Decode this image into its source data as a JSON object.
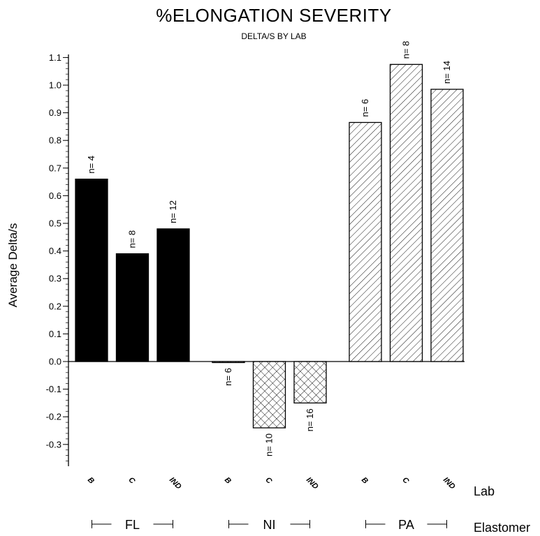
{
  "chart_data": {
    "type": "bar",
    "title": "%ELONGATION SEVERITY",
    "subtitle": "DELTA/S BY LAB",
    "ylabel": "Average Delta/s",
    "xlabel_lab": "Lab",
    "xlabel_group": "Elastomer",
    "ylim": [
      -0.42,
      1.22
    ],
    "yticks": [
      -0.3,
      -0.2,
      -0.1,
      0.0,
      0.1,
      0.2,
      0.3,
      0.4,
      0.5,
      0.6,
      0.7,
      0.8,
      0.9,
      1.0,
      1.1
    ],
    "ytick_labels": [
      "-0.3",
      "-0.2",
      "-0.1",
      "0.0",
      "0.1",
      "0.2",
      "0.3",
      "0.4",
      "0.5",
      "0.6",
      "0.7",
      "0.8",
      "0.9",
      "1.0",
      "1.1"
    ],
    "grid": false,
    "groups": [
      {
        "name": "FL",
        "pattern": "solid",
        "bars": [
          {
            "lab": "B",
            "value": 0.66,
            "n_label": "n= 4"
          },
          {
            "lab": "C",
            "value": 0.39,
            "n_label": "n= 8"
          },
          {
            "lab": "IND",
            "value": 0.48,
            "n_label": "n= 12"
          }
        ]
      },
      {
        "name": "NI",
        "pattern": "crosshatch",
        "bars": [
          {
            "lab": "B",
            "value": -0.003,
            "n_label": "n= 6"
          },
          {
            "lab": "C",
            "value": -0.24,
            "n_label": "n= 10"
          },
          {
            "lab": "IND",
            "value": -0.15,
            "n_label": "n= 16"
          }
        ]
      },
      {
        "name": "PA",
        "pattern": "diagonal",
        "bars": [
          {
            "lab": "B",
            "value": 0.865,
            "n_label": "n= 6"
          },
          {
            "lab": "C",
            "value": 1.075,
            "n_label": "n= 8"
          },
          {
            "lab": "IND",
            "value": 0.985,
            "n_label": "n= 14"
          }
        ]
      }
    ]
  }
}
